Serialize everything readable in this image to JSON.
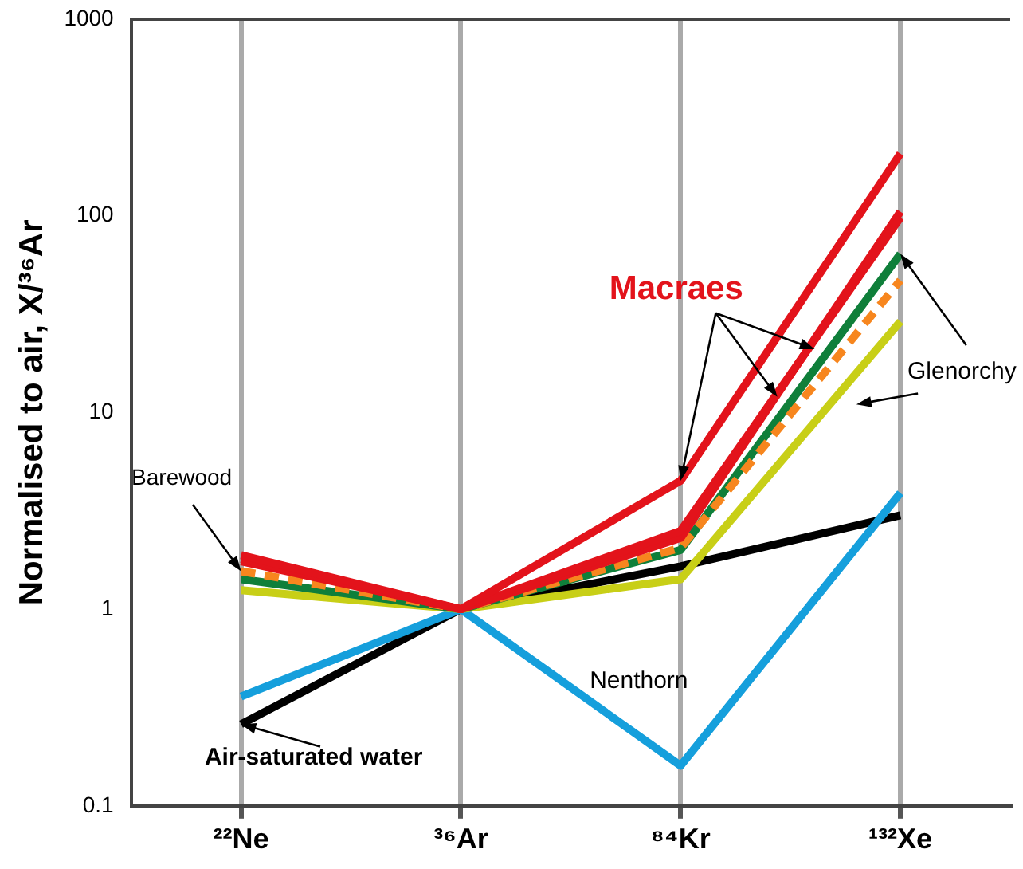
{
  "chart_data": {
    "type": "line",
    "ylabel": "Normalised to air, X/³⁶Ar",
    "categories": [
      "²²Ne",
      "³⁶Ar",
      "⁸⁴Kr",
      "¹³²Xe"
    ],
    "series": [
      {
        "color": "#e3131b",
        "values": [
          1.88,
          1.0,
          4.5,
          207
        ]
      },
      {
        "color": "#e3131b",
        "values": [
          1.8,
          1.0,
          2.5,
          98
        ]
      },
      {
        "color": "#e3131b",
        "values": [
          1.75,
          1.0,
          2.3,
          105
        ]
      },
      {
        "color": "#f7861e",
        "line_style": "dashed",
        "values": [
          1.56,
          1.0,
          2.05,
          47
        ]
      },
      {
        "color": "#0f7f3a",
        "values": [
          1.42,
          1.0,
          2.0,
          64
        ]
      },
      {
        "color": "#c8cf17",
        "values": [
          1.25,
          1.0,
          1.42,
          29
        ]
      },
      {
        "color": "#159fdc",
        "values": [
          0.36,
          1.0,
          0.16,
          3.9
        ]
      },
      {
        "color": "#000000",
        "values": [
          0.26,
          1.0,
          1.65,
          3.0
        ]
      }
    ],
    "annotations": [
      {
        "text": "Macraes",
        "x": "⁸⁴Kr",
        "y": 4.5
      },
      {
        "text": "Barewood",
        "x": "²²Ne",
        "y": 1.56
      },
      {
        "text": "Glenorchy",
        "x": "¹³²Xe",
        "y": 64
      },
      "Nenthorn",
      {
        "text": "Air-saturated water",
        "x": "²²Ne",
        "y": 0.26
      }
    ],
    "log": "y",
    "ylim": [
      0.1,
      1000
    ],
    "yticks": [
      0.1,
      1,
      10,
      100,
      1000
    ],
    "grid": "x",
    "legend": false,
    "marker": "none",
    "line_style": "solid"
  }
}
